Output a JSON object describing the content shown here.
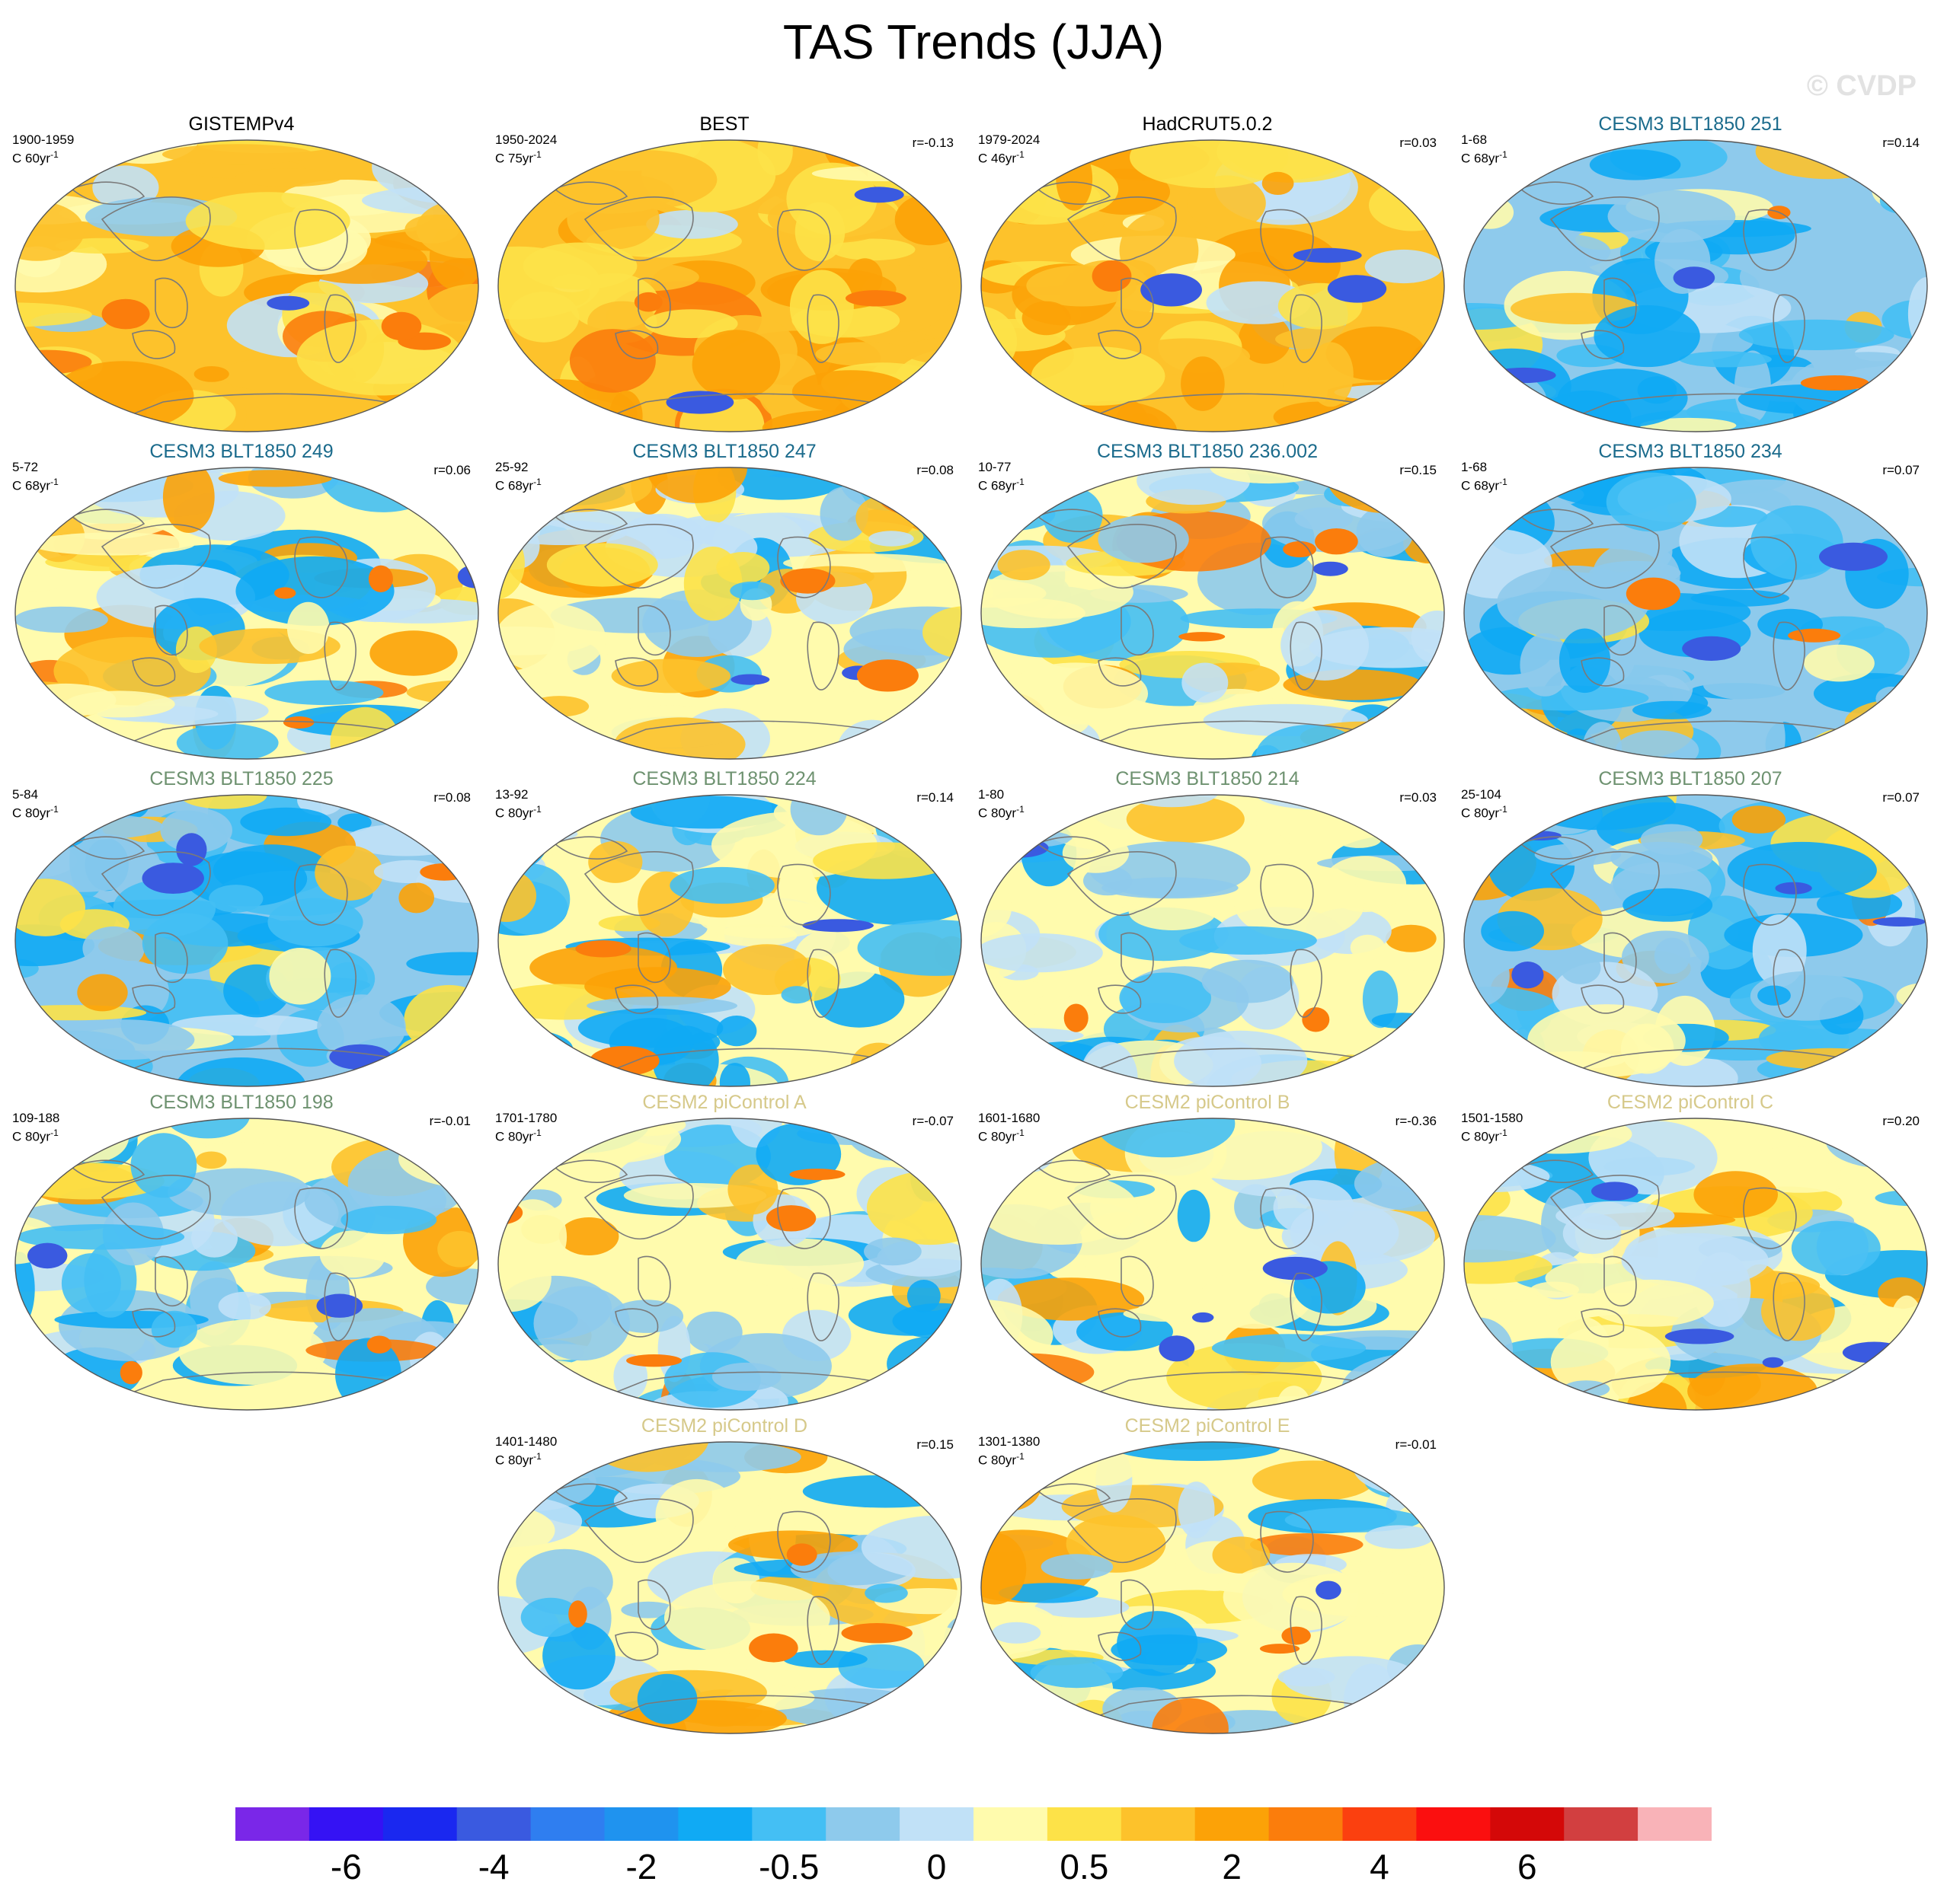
{
  "title": "TAS Trends (JJA)",
  "watermark": "© CVDP",
  "chart_data": {
    "type": "heatmap",
    "title": "TAS Trends (JJA)",
    "projection": "Robinson (global, Pacific-centered)",
    "units_label": "C",
    "colorbar": {
      "colors": [
        "#7a27e8",
        "#3512f4",
        "#1a28f0",
        "#3a5ae0",
        "#2f7ef0",
        "#1f93ef",
        "#10aaf4",
        "#44bff4",
        "#8ecaec",
        "#c1e1f7",
        "#fffbad",
        "#fde248",
        "#fdc22b",
        "#fca207",
        "#fb7d0c",
        "#fb400f",
        "#fb0f0f",
        "#d40808",
        "#d23f40",
        "#f9b3b8"
      ],
      "tick_labels": [
        "-6",
        "-4",
        "-2",
        "-0.5",
        "0",
        "0.5",
        "2",
        "4",
        "6"
      ],
      "tick_boundaries": [
        1,
        3,
        5,
        7,
        9,
        11,
        13,
        15,
        17
      ]
    },
    "panels": [
      {
        "title": "GISTEMPv4",
        "group": "obs",
        "years": "1900-1959",
        "units": "C 60yr",
        "r": "",
        "palette": [
          0.6,
          0.35,
          0.1
        ]
      },
      {
        "title": "BEST",
        "group": "obs",
        "years": "1950-2024",
        "units": "C 75yr",
        "r": "r=-0.13",
        "palette": [
          0.95,
          0.05,
          0.0
        ]
      },
      {
        "title": "HadCRUT5.0.2",
        "group": "obs",
        "years": "1979-2024",
        "units": "C 46yr",
        "r": "r=0.03",
        "palette": [
          0.85,
          0.12,
          0.03
        ]
      },
      {
        "title": "CESM3 BLT1850 251",
        "group": "cesm3a",
        "years": "1-68",
        "units": "C 68yr",
        "r": "r=0.14",
        "palette": [
          0.2,
          0.1,
          0.7
        ]
      },
      {
        "title": "CESM3 BLT1850 249",
        "group": "cesm3a",
        "years": "5-72",
        "units": "C 68yr",
        "r": "r=0.06",
        "palette": [
          0.4,
          0.2,
          0.4
        ]
      },
      {
        "title": "CESM3 BLT1850 247",
        "group": "cesm3a",
        "years": "25-92",
        "units": "C 68yr",
        "r": "r=0.08",
        "palette": [
          0.45,
          0.25,
          0.3
        ]
      },
      {
        "title": "CESM3 BLT1850 236.002",
        "group": "cesm3a",
        "years": "10-77",
        "units": "C 68yr",
        "r": "r=0.15",
        "palette": [
          0.4,
          0.2,
          0.4
        ]
      },
      {
        "title": "CESM3 BLT1850 234",
        "group": "cesm3a",
        "years": "1-68",
        "units": "C 68yr",
        "r": "r=0.07",
        "palette": [
          0.15,
          0.1,
          0.75
        ]
      },
      {
        "title": "CESM3 BLT1850 225",
        "group": "cesm3b",
        "years": "5-84",
        "units": "C 80yr",
        "r": "r=0.08",
        "palette": [
          0.15,
          0.2,
          0.65
        ]
      },
      {
        "title": "CESM3 BLT1850 224",
        "group": "cesm3b",
        "years": "13-92",
        "units": "C 80yr",
        "r": "r=0.14",
        "palette": [
          0.3,
          0.2,
          0.5
        ]
      },
      {
        "title": "CESM3 BLT1850 214",
        "group": "cesm3b",
        "years": "1-80",
        "units": "C 80yr",
        "r": "r=0.03",
        "palette": [
          0.2,
          0.4,
          0.4
        ]
      },
      {
        "title": "CESM3 BLT1850 207",
        "group": "cesm3b",
        "years": "25-104",
        "units": "C 80yr",
        "r": "r=0.07",
        "palette": [
          0.2,
          0.2,
          0.6
        ]
      },
      {
        "title": "CESM3 BLT1850 198",
        "group": "cesm3b",
        "years": "109-188",
        "units": "C 80yr",
        "r": "r=-0.01",
        "palette": [
          0.35,
          0.3,
          0.35
        ]
      },
      {
        "title": "CESM2 piControl A",
        "group": "cesm2",
        "years": "1701-1780",
        "units": "C 80yr",
        "r": "r=-0.07",
        "palette": [
          0.2,
          0.45,
          0.35
        ]
      },
      {
        "title": "CESM2 piControl B",
        "group": "cesm2",
        "years": "1601-1680",
        "units": "C 80yr",
        "r": "r=-0.36",
        "palette": [
          0.25,
          0.45,
          0.3
        ]
      },
      {
        "title": "CESM2 piControl C",
        "group": "cesm2",
        "years": "1501-1580",
        "units": "C 80yr",
        "r": "r=0.20",
        "palette": [
          0.25,
          0.4,
          0.35
        ]
      },
      {
        "title": "CESM2 piControl D",
        "group": "cesm2",
        "years": "1401-1480",
        "units": "C 80yr",
        "r": "r=0.15",
        "palette": [
          0.2,
          0.4,
          0.4
        ]
      },
      {
        "title": "CESM2 piControl E",
        "group": "cesm2",
        "years": "1301-1380",
        "units": "C 80yr",
        "r": "r=-0.01",
        "palette": [
          0.3,
          0.4,
          0.3
        ]
      }
    ]
  }
}
